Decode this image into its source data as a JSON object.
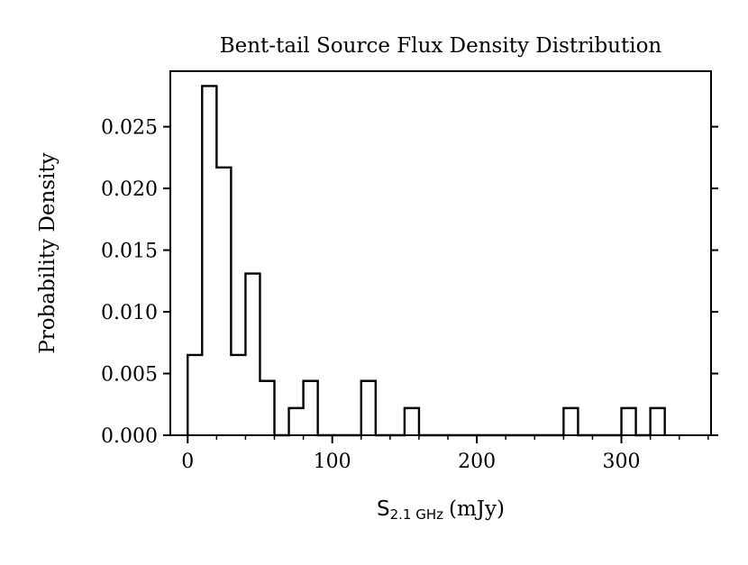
{
  "chart_data": {
    "type": "histogram",
    "title": "Bent-tail Source Flux Density Distribution",
    "xlabel": {
      "symbol": "S",
      "subscript": "2.1 GHz",
      "unit": "(mJy)"
    },
    "ylabel": "Probability Density",
    "xlim": [
      -12,
      362
    ],
    "ylim": [
      0,
      0.0295
    ],
    "xticks": [
      0,
      100,
      200,
      300
    ],
    "xtick_labels": [
      "0",
      "100",
      "200",
      "300"
    ],
    "yticks": [
      0.0,
      0.005,
      0.01,
      0.015,
      0.02,
      0.025
    ],
    "ytick_labels": [
      "0.000",
      "0.005",
      "0.010",
      "0.015",
      "0.020",
      "0.025"
    ],
    "bin_edges": [
      0,
      10,
      20,
      30,
      40,
      50,
      60,
      70,
      80,
      90,
      100,
      110,
      120,
      130,
      140,
      150,
      160,
      170,
      180,
      190,
      200,
      210,
      220,
      230,
      240,
      250,
      260,
      270,
      280,
      290,
      300,
      310,
      320,
      330
    ],
    "values": [
      0.0065,
      0.0283,
      0.0217,
      0.0065,
      0.0131,
      0.0044,
      0,
      0.0022,
      0.0044,
      0,
      0,
      0,
      0.0044,
      0,
      0,
      0.0022,
      0,
      0,
      0,
      0,
      0,
      0,
      0,
      0,
      0,
      0,
      0.0022,
      0,
      0,
      0,
      0.0022,
      0,
      0.0022
    ],
    "histtype": "step",
    "color": "#000000",
    "grid": false
  }
}
